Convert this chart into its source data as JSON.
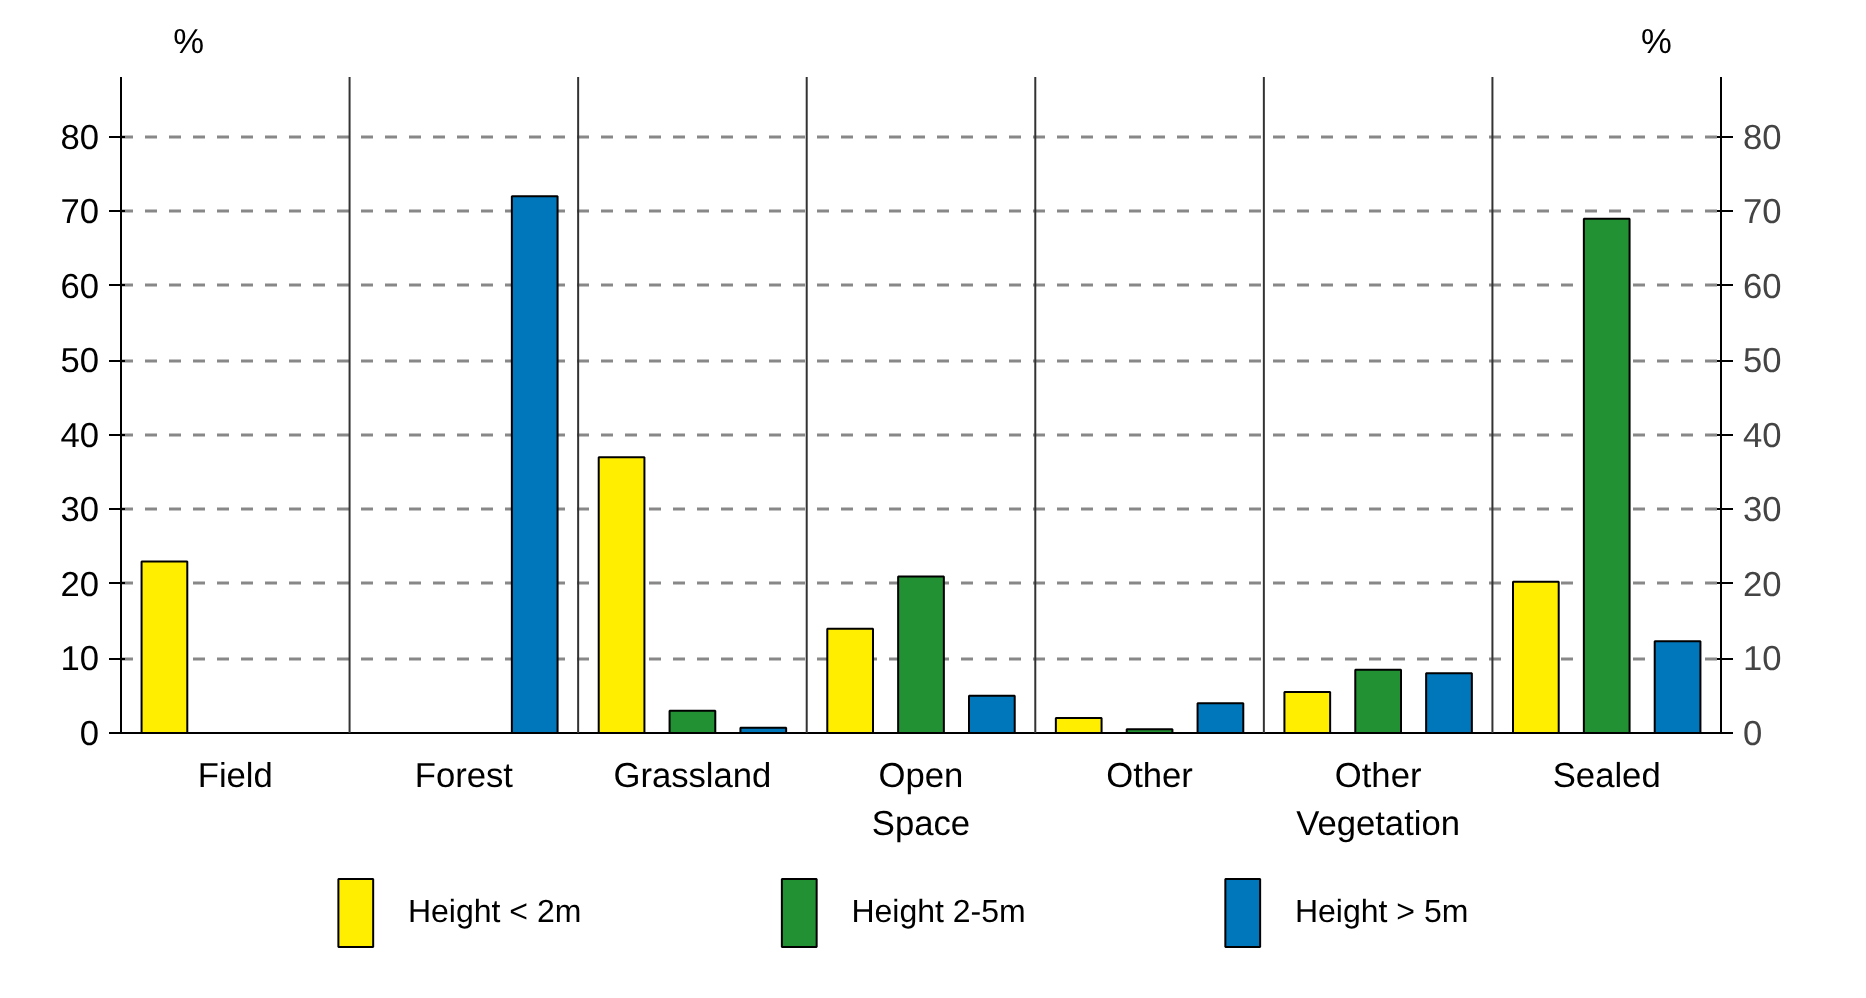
{
  "chart_data": {
    "type": "bar",
    "ylabel": "%",
    "y2label": "%",
    "categories": [
      "Field",
      "Forest",
      "Grassland",
      "Open Space",
      "Other",
      "Other Vegetation",
      "Sealed"
    ],
    "series": [
      {
        "name": "Height < 2m",
        "color": "#ffee00",
        "values": [
          23,
          null,
          37,
          14,
          2,
          5.5,
          20.3
        ]
      },
      {
        "name": "Height 2-5m",
        "color": "#229133",
        "values": [
          null,
          null,
          3,
          21,
          0.5,
          8.5,
          69
        ]
      },
      {
        "name": "Height > 5m",
        "color": "#0077bb",
        "values": [
          null,
          72,
          0.7,
          5,
          4,
          8,
          12.3
        ]
      }
    ],
    "ylim": [
      0,
      88
    ],
    "yticks": [
      0,
      10,
      20,
      30,
      40,
      50,
      60,
      70,
      80
    ],
    "y2lim": [
      0,
      88
    ],
    "y2ticks": [
      0,
      10,
      20,
      30,
      40,
      50,
      60,
      70,
      80
    ],
    "grid": "y",
    "legend": "bottom"
  }
}
